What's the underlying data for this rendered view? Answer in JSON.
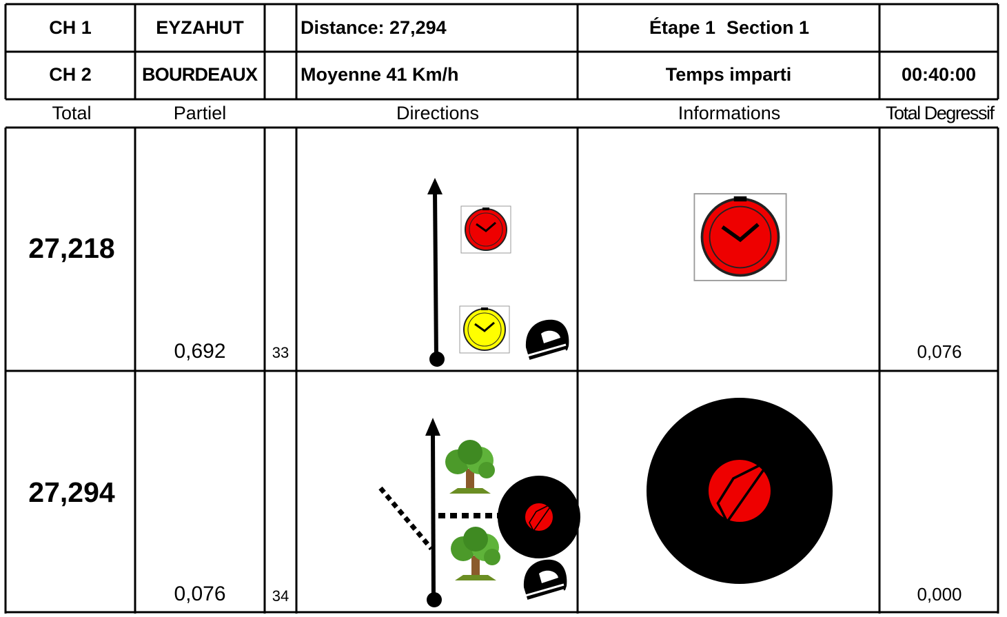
{
  "header": {
    "rows": [
      {
        "checkpoint": "CH 1",
        "place": "EYZAHUT",
        "info": "Distance: 27,294",
        "stage": "Étape 1",
        "section": "Section 1"
      },
      {
        "checkpoint": "CH 2",
        "place": "BOURDEAUX",
        "info": "Moyenne 41 Km/h",
        "label": "Temps imparti",
        "time": "00:40:00"
      }
    ]
  },
  "columns": [
    "Total",
    "Partiel",
    "Directions",
    "Informations",
    "Total Degressif"
  ],
  "rows": [
    {
      "total": "27,218",
      "partial": "0,692",
      "number": "33",
      "remaining": "0,076"
    },
    {
      "total": "27,294",
      "partial": "0,076",
      "number": "34",
      "remaining": "0,000"
    }
  ]
}
